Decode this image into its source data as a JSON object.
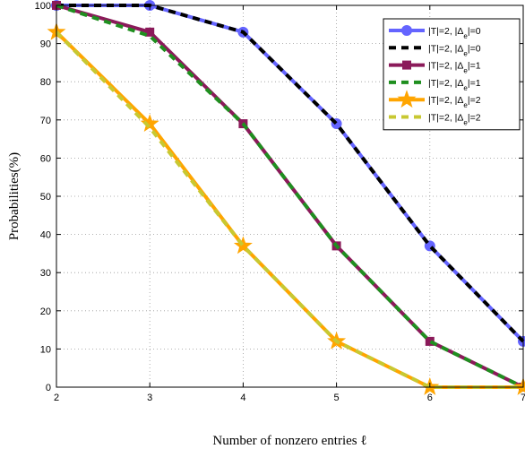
{
  "chart_data": {
    "type": "line",
    "xlabel": "Number of nonzero entries ℓ",
    "ylabel": "Probabilities(%)",
    "x": [
      2,
      3,
      4,
      5,
      6,
      7
    ],
    "xlim": [
      2,
      7
    ],
    "ylim": [
      0,
      100
    ],
    "xticks": [
      "2",
      "3",
      "4",
      "5",
      "6",
      "7"
    ],
    "yticks": [
      "0",
      "10",
      "20",
      "30",
      "40",
      "50",
      "60",
      "70",
      "80",
      "90",
      "100"
    ],
    "grid": true,
    "legend_position": "top-right",
    "series": [
      {
        "name": "|T|=2, |Δe|=0",
        "values": [
          100,
          100,
          93,
          69,
          37,
          12
        ],
        "color": "#6464ff",
        "style": "solid",
        "marker": "circle"
      },
      {
        "name": "|T|=2, |Δe|=0",
        "values": [
          100,
          100,
          93,
          69,
          37,
          12
        ],
        "color": "#000000",
        "style": "dashed",
        "marker": "none"
      },
      {
        "name": "|T|=2, |Δe|=1",
        "values": [
          100,
          93,
          69,
          37,
          12,
          0
        ],
        "color": "#8b1a5a",
        "style": "solid",
        "marker": "square"
      },
      {
        "name": "|T|=2, |Δe|=1",
        "values": [
          100,
          92,
          69,
          37,
          12,
          0
        ],
        "color": "#1f8f1f",
        "style": "dashed",
        "marker": "none"
      },
      {
        "name": "|T|=2, |Δe|=2",
        "values": [
          93,
          69,
          37,
          12,
          0,
          0
        ],
        "color": "#ffa500",
        "style": "solid",
        "marker": "star"
      },
      {
        "name": "|T|=2, |Δe|=2",
        "values": [
          93,
          68,
          37,
          12,
          0,
          0
        ],
        "color": "#c8c832",
        "style": "dashed",
        "marker": "none"
      }
    ]
  }
}
